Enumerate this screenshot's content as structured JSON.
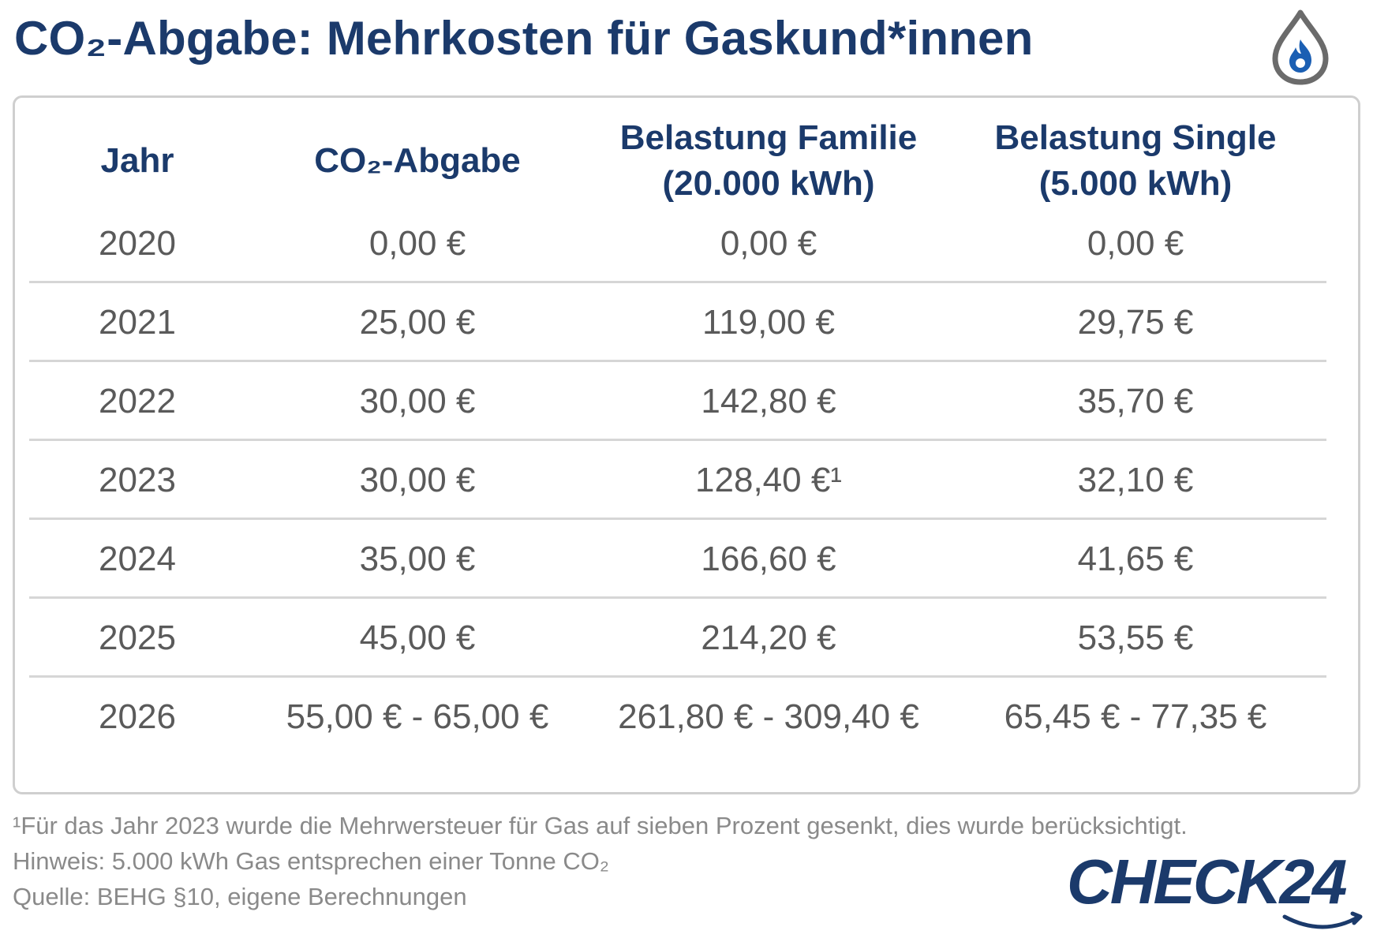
{
  "header": {
    "title": "CO₂-Abgabe: Mehrkosten für Gaskund*innen",
    "icon": "gas-flame-drop-icon"
  },
  "table": {
    "columns": [
      {
        "line1": "Jahr",
        "line2": ""
      },
      {
        "line1": "CO₂-Abgabe",
        "line2": ""
      },
      {
        "line1": "Belastung Familie",
        "line2": "(20.000 kWh)"
      },
      {
        "line1": "Belastung Single",
        "line2": "(5.000 kWh)"
      }
    ],
    "rows": [
      {
        "year": "2020",
        "levy": "0,00 €",
        "family": "0,00 €",
        "single": "0,00 €"
      },
      {
        "year": "2021",
        "levy": "25,00 €",
        "family": "119,00 €",
        "single": "29,75 €"
      },
      {
        "year": "2022",
        "levy": "30,00 €",
        "family": "142,80 €",
        "single": "35,70 €"
      },
      {
        "year": "2023",
        "levy": "30,00 €",
        "family": "128,40 €¹",
        "single": "32,10 €"
      },
      {
        "year": "2024",
        "levy": "35,00 €",
        "family": "166,60 €",
        "single": "41,65 €"
      },
      {
        "year": "2025",
        "levy": "45,00 €",
        "family": "214,20 €",
        "single": "53,55 €"
      },
      {
        "year": "2026",
        "levy": "55,00 € - 65,00 €",
        "family": "261,80 € - 309,40 €",
        "single": "65,45 € - 77,35 €"
      }
    ]
  },
  "footnotes": {
    "note1": "¹Für das Jahr 2023 wurde die Mehrwersteuer für Gas auf sieben Prozent gesenkt, dies wurde berücksichtigt.",
    "hint": "Hinweis: 5.000 kWh Gas entsprechen einer Tonne CO₂",
    "source": "Quelle: BEHG §10, eigene Berechnungen"
  },
  "logo": {
    "text": "CHECK24"
  },
  "colors": {
    "brand_navy": "#1b3a6b",
    "body_text": "#5a5a5a",
    "footnote_text": "#8a8a8a",
    "border": "#cfcfcf"
  }
}
